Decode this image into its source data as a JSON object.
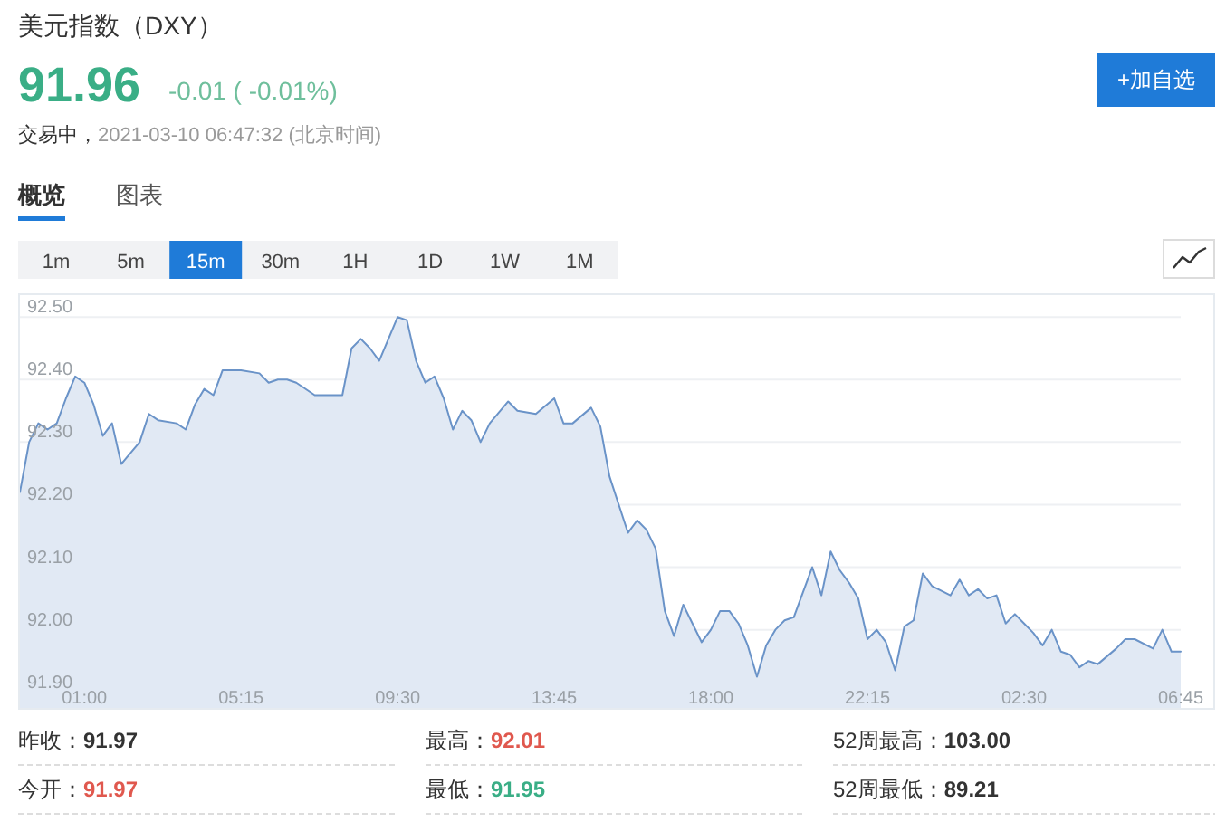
{
  "chart_data": {
    "type": "area",
    "title": "美元指数（DXY）",
    "annotations": [
      "91.96",
      "-0.01 ( -0.01%)",
      "交易中，2021-03-10 06:47:32 (北京时间)",
      "+加自选",
      "概览",
      "图表",
      "1m",
      "5m",
      "15m",
      "30m",
      "1H",
      "1D",
      "1W",
      "1M",
      "昨收：91.97",
      "最高：92.01",
      "52周最高：103.00",
      "今开：91.97",
      "最低：91.95",
      "52周最低：89.21"
    ],
    "x": [
      "2021-03-08T23:15",
      "2021-03-08T23:30",
      "2021-03-08T23:45",
      "2021-03-09T00:00",
      "2021-03-09T00:15",
      "2021-03-09T00:30",
      "2021-03-09T00:45",
      "2021-03-09T01:00",
      "2021-03-09T01:15",
      "2021-03-09T01:30",
      "2021-03-09T01:45",
      "2021-03-09T02:00",
      "2021-03-09T02:30",
      "2021-03-09T02:45",
      "2021-03-09T03:00",
      "2021-03-09T03:30",
      "2021-03-09T03:45",
      "2021-03-09T04:00",
      "2021-03-09T04:15",
      "2021-03-09T04:30",
      "2021-03-09T04:45",
      "2021-03-09T05:15",
      "2021-03-09T05:45",
      "2021-03-09T06:00",
      "2021-03-09T06:15",
      "2021-03-09T06:30",
      "2021-03-09T06:45",
      "2021-03-09T07:15",
      "2021-03-09T08:00",
      "2021-03-09T08:15",
      "2021-03-09T08:30",
      "2021-03-09T08:45",
      "2021-03-09T09:00",
      "2021-03-09T09:30",
      "2021-03-09T09:45",
      "2021-03-09T10:00",
      "2021-03-09T10:15",
      "2021-03-09T10:30",
      "2021-03-09T10:45",
      "2021-03-09T11:00",
      "2021-03-09T11:15",
      "2021-03-09T11:30",
      "2021-03-09T11:45",
      "2021-03-09T12:00",
      "2021-03-09T12:30",
      "2021-03-09T12:45",
      "2021-03-09T13:15",
      "2021-03-09T13:45",
      "2021-03-09T14:00",
      "2021-03-09T14:15",
      "2021-03-09T14:45",
      "2021-03-09T15:00",
      "2021-03-09T15:15",
      "2021-03-09T15:30",
      "2021-03-09T15:45",
      "2021-03-09T16:00",
      "2021-03-09T16:15",
      "2021-03-09T16:30",
      "2021-03-09T16:45",
      "2021-03-09T17:00",
      "2021-03-09T17:15",
      "2021-03-09T17:30",
      "2021-03-09T17:45",
      "2021-03-09T18:00",
      "2021-03-09T18:15",
      "2021-03-09T18:30",
      "2021-03-09T18:45",
      "2021-03-09T19:00",
      "2021-03-09T19:15",
      "2021-03-09T19:30",
      "2021-03-09T19:45",
      "2021-03-09T20:00",
      "2021-03-09T20:15",
      "2021-03-09T20:30",
      "2021-03-09T20:45",
      "2021-03-09T21:00",
      "2021-03-09T21:15",
      "2021-03-09T21:30",
      "2021-03-09T21:45",
      "2021-03-09T22:00",
      "2021-03-09T22:15",
      "2021-03-09T22:30",
      "2021-03-09T22:45",
      "2021-03-09T23:00",
      "2021-03-09T23:15",
      "2021-03-09T23:30",
      "2021-03-09T23:45",
      "2021-03-10T00:00",
      "2021-03-10T00:30",
      "2021-03-10T00:45",
      "2021-03-10T01:00",
      "2021-03-10T01:15",
      "2021-03-10T01:30",
      "2021-03-10T01:45",
      "2021-03-10T02:00",
      "2021-03-10T02:15",
      "2021-03-10T02:30",
      "2021-03-10T02:45",
      "2021-03-10T03:00",
      "2021-03-10T03:15",
      "2021-03-10T03:30",
      "2021-03-10T03:45",
      "2021-03-10T04:00",
      "2021-03-10T04:15",
      "2021-03-10T04:30",
      "2021-03-10T05:00",
      "2021-03-10T05:15",
      "2021-03-10T05:30",
      "2021-03-10T06:00",
      "2021-03-10T06:15",
      "2021-03-10T06:30",
      "2021-03-10T06:45"
    ],
    "values": [
      92.22,
      92.3,
      92.33,
      92.32,
      92.33,
      92.37,
      92.405,
      92.395,
      92.36,
      92.31,
      92.33,
      92.265,
      92.3,
      92.345,
      92.335,
      92.33,
      92.32,
      92.36,
      92.385,
      92.375,
      92.415,
      92.415,
      92.41,
      92.395,
      92.4,
      92.4,
      92.395,
      92.375,
      92.375,
      92.45,
      92.465,
      92.45,
      92.43,
      92.5,
      92.495,
      92.43,
      92.395,
      92.405,
      92.37,
      92.32,
      92.35,
      92.335,
      92.3,
      92.33,
      92.365,
      92.35,
      92.345,
      92.37,
      92.33,
      92.33,
      92.355,
      92.325,
      92.245,
      92.2,
      92.155,
      92.175,
      92.16,
      92.13,
      92.03,
      91.99,
      92.04,
      92.01,
      91.98,
      92.0,
      92.03,
      92.03,
      92.01,
      91.975,
      91.925,
      91.975,
      92.0,
      92.015,
      92.02,
      92.06,
      92.1,
      92.055,
      92.125,
      92.095,
      92.075,
      92.05,
      91.985,
      92.0,
      91.98,
      91.935,
      92.005,
      92.015,
      92.09,
      92.07,
      92.055,
      92.08,
      92.055,
      92.065,
      92.05,
      92.055,
      92.01,
      92.025,
      92.01,
      91.995,
      91.975,
      92.0,
      91.965,
      91.96,
      91.94,
      91.95,
      91.945,
      91.97,
      91.985,
      91.985,
      91.97,
      92.0,
      91.965,
      91.965
    ],
    "color": "#6a93c8",
    "xlim": [
      "2021-03-08T23:15",
      "2021-03-10T06:45"
    ],
    "xticks": [
      {
        "value": "2021-03-09T01:00",
        "label": "01:00"
      },
      {
        "value": "2021-03-09T05:15",
        "label": "05:15"
      },
      {
        "value": "2021-03-09T09:30",
        "label": "09:30"
      },
      {
        "value": "2021-03-09T13:45",
        "label": "13:45"
      },
      {
        "value": "2021-03-09T18:00",
        "label": "18:00"
      },
      {
        "value": "2021-03-09T22:15",
        "label": "22:15"
      },
      {
        "value": "2021-03-10T02:30",
        "label": "02:30"
      },
      {
        "value": "2021-03-10T06:45",
        "label": "06:45"
      }
    ],
    "ylim": [
      91.875,
      92.535
    ],
    "yticks": [
      {
        "value": 91.9,
        "label": "91.90"
      },
      {
        "value": 92.0,
        "label": "92.00"
      },
      {
        "value": 92.1,
        "label": "92.10"
      },
      {
        "value": 92.2,
        "label": "92.20"
      },
      {
        "value": 92.3,
        "label": "92.30"
      },
      {
        "value": 92.4,
        "label": "92.40"
      },
      {
        "value": 92.5,
        "label": "92.50"
      }
    ],
    "grid": "y"
  }
}
